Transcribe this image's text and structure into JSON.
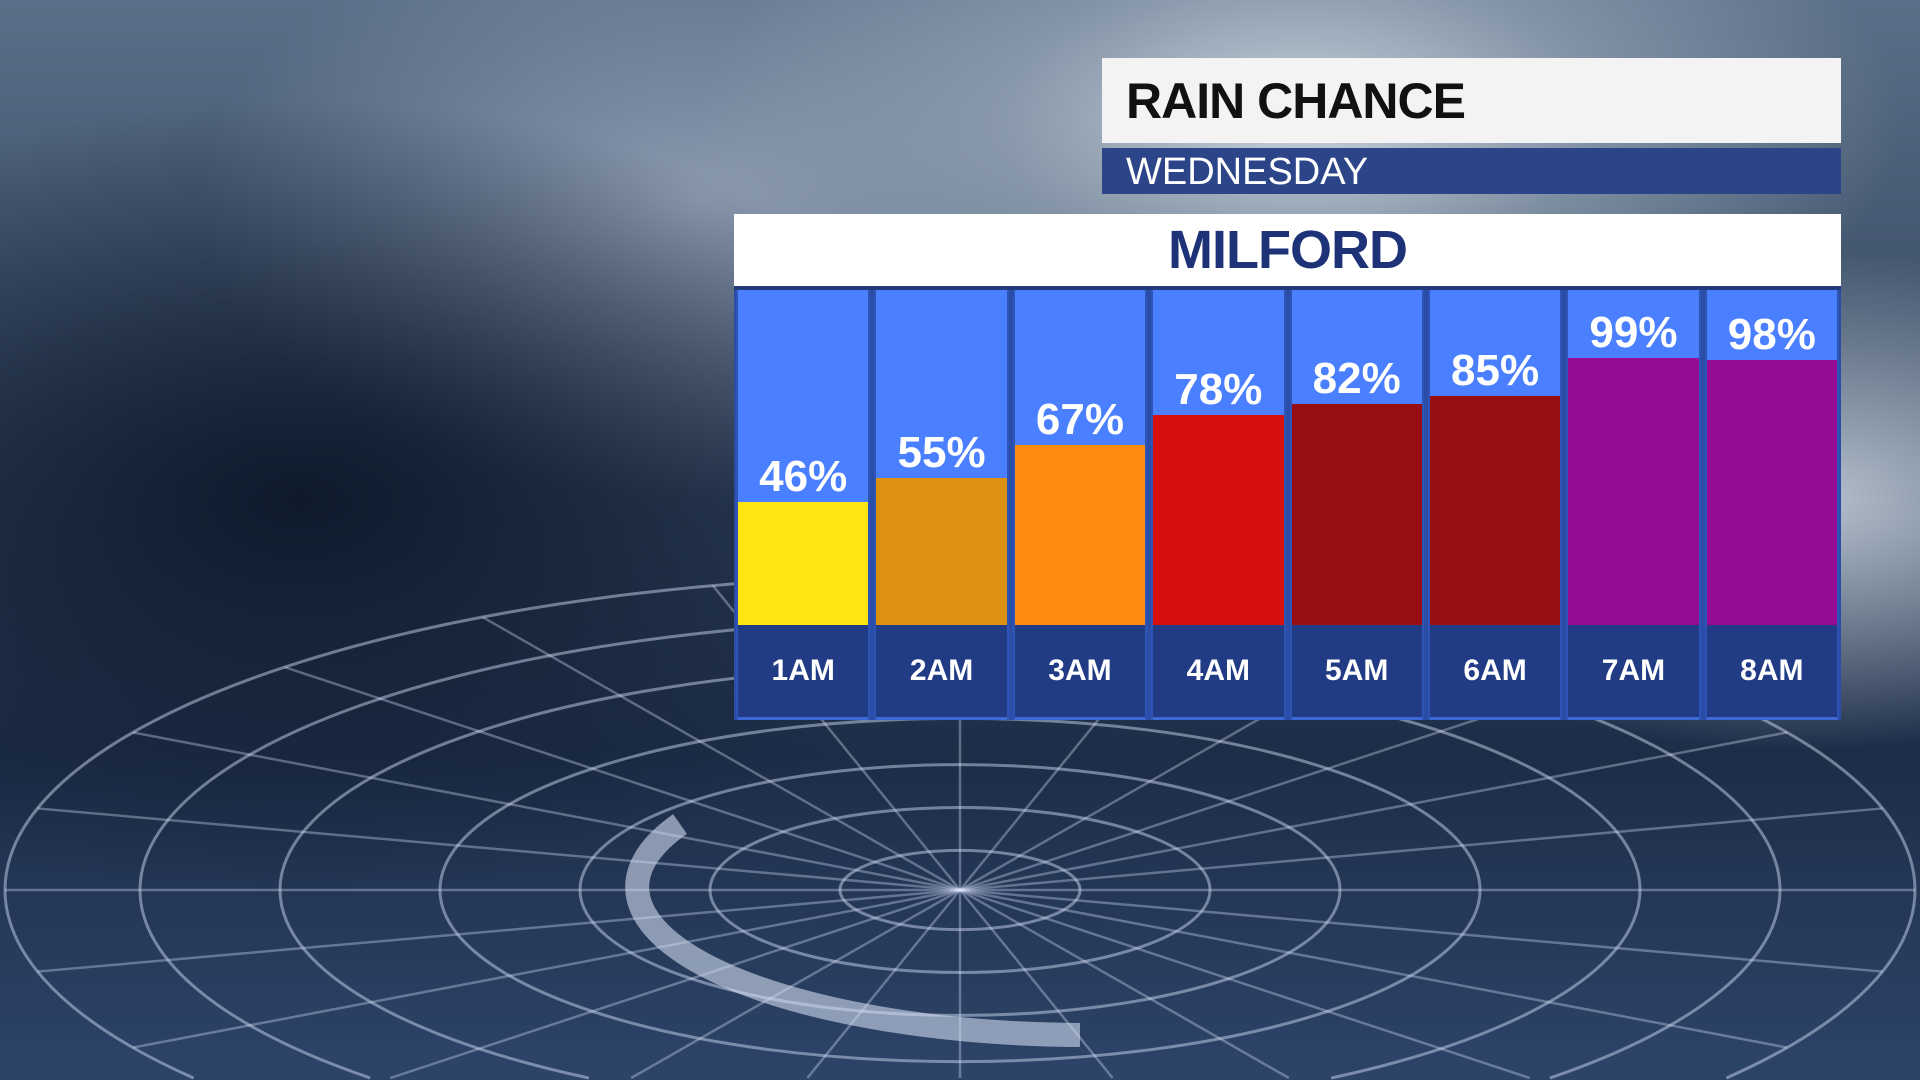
{
  "header": {
    "title": "RAIN CHANCE",
    "day": "WEDNESDAY",
    "location": "MILFORD"
  },
  "chart_data": {
    "type": "bar",
    "title": "RAIN CHANCE",
    "subtitle": "WEDNESDAY",
    "location": "MILFORD",
    "categories": [
      "1AM",
      "2AM",
      "3AM",
      "4AM",
      "5AM",
      "6AM",
      "7AM",
      "8AM"
    ],
    "values": [
      46,
      55,
      67,
      78,
      82,
      85,
      99,
      98
    ],
    "labels": [
      "46%",
      "55%",
      "67%",
      "78%",
      "82%",
      "85%",
      "99%",
      "98%"
    ],
    "colors": [
      "#ffe512",
      "#dc9210",
      "#ff8c12",
      "#d80f0f",
      "#980e12",
      "#980e12",
      "#960b94",
      "#960b94"
    ],
    "ylim": [
      0,
      100
    ],
    "unit": "%",
    "background_color": "#4a7fff"
  }
}
